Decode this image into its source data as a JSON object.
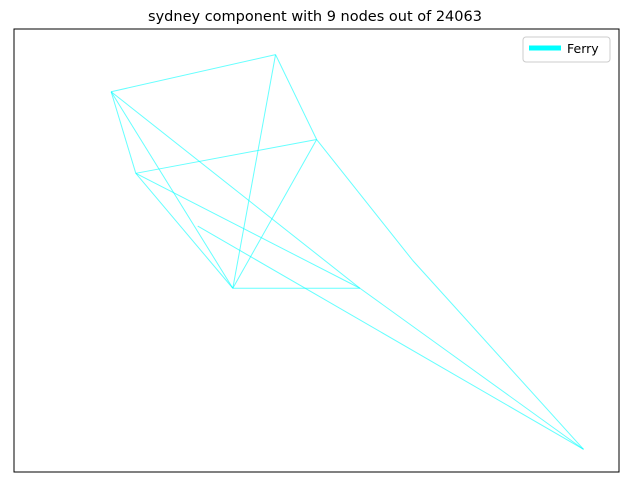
{
  "chart_data": {
    "type": "network",
    "title": "sydney component with 9 nodes out of 24063",
    "legend": {
      "placement": "top-right",
      "entries": [
        {
          "label": "Ferry",
          "color": "#00ffff"
        }
      ]
    },
    "nodes": [
      {
        "id": "n0",
        "x": 0.128,
        "y": 0.889
      },
      {
        "id": "n1",
        "x": 0.173,
        "y": 0.691
      },
      {
        "id": "n2",
        "x": 0.286,
        "y": 0.563
      },
      {
        "id": "n3",
        "x": 0.35,
        "y": 0.412
      },
      {
        "id": "n4",
        "x": 0.428,
        "y": 0.979
      },
      {
        "id": "n5",
        "x": 0.503,
        "y": 0.773
      },
      {
        "id": "n6",
        "x": 0.582,
        "y": 0.412
      },
      {
        "id": "n7",
        "x": 0.678,
        "y": 0.48
      },
      {
        "id": "n8",
        "x": 0.99,
        "y": 0.021
      }
    ],
    "edges": [
      [
        "n0",
        "n4"
      ],
      [
        "n0",
        "n1"
      ],
      [
        "n0",
        "n3"
      ],
      [
        "n0",
        "n6"
      ],
      [
        "n4",
        "n5"
      ],
      [
        "n4",
        "n3"
      ],
      [
        "n5",
        "n7"
      ],
      [
        "n5",
        "n3"
      ],
      [
        "n5",
        "n1"
      ],
      [
        "n1",
        "n3"
      ],
      [
        "n1",
        "n6"
      ],
      [
        "n3",
        "n6"
      ],
      [
        "n7",
        "n8"
      ],
      [
        "n6",
        "n8"
      ],
      [
        "n2",
        "n8"
      ]
    ]
  }
}
